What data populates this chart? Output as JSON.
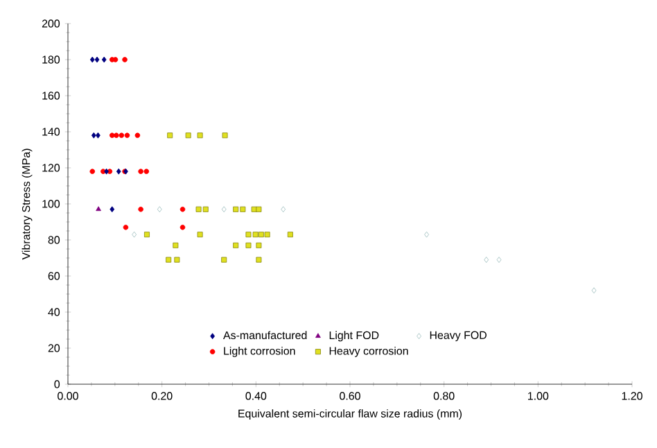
{
  "chart_data": {
    "type": "scatter",
    "xlabel": "Equivalent semi-circular flaw size radius (mm)",
    "ylabel": "Vibratory Stress (MPa)",
    "xlim": [
      0,
      1.2
    ],
    "ylim": [
      0,
      200
    ],
    "xticks": [
      {
        "value": 0,
        "label": "0.00"
      },
      {
        "value": 0.2,
        "label": "0.20"
      },
      {
        "value": 0.4,
        "label": "0.40"
      },
      {
        "value": 0.6,
        "label": "0.60"
      },
      {
        "value": 0.8,
        "label": "0.80"
      },
      {
        "value": 1.0,
        "label": "1.00"
      },
      {
        "value": 1.2,
        "label": "1.20"
      }
    ],
    "yticks": [
      0,
      20,
      40,
      60,
      80,
      100,
      120,
      140,
      160,
      180,
      200
    ],
    "grid": false,
    "legend": "bottom",
    "series": [
      {
        "name": "As-manufactured",
        "color": "#000080",
        "marker": "diamond",
        "x": [
          0.052,
          0.062,
          0.077,
          0.055,
          0.064,
          0.082,
          0.108,
          0.123,
          0.094
        ],
        "values": [
          180,
          180,
          180,
          138,
          138,
          118,
          118,
          118,
          97
        ]
      },
      {
        "name": "Light FOD",
        "color": "#800080",
        "marker": "triangle",
        "x": [
          0.065
        ],
        "values": [
          97
        ]
      },
      {
        "name": "Heavy FOD",
        "color": "#99bbbb",
        "marker": "diamond",
        "x": [
          0.141,
          0.195,
          0.332,
          0.458,
          0.763,
          0.89,
          0.917,
          1.119
        ],
        "values": [
          83,
          97,
          97,
          97,
          83,
          69,
          69,
          52
        ]
      },
      {
        "name": "Light corrosion",
        "color": "#ff0000",
        "marker": "circle",
        "x": [
          0.094,
          0.101,
          0.121,
          0.094,
          0.103,
          0.114,
          0.126,
          0.148,
          0.052,
          0.075,
          0.089,
          0.121,
          0.155,
          0.167,
          0.155,
          0.244,
          0.123,
          0.244
        ],
        "values": [
          180,
          180,
          180,
          138,
          138,
          138,
          138,
          138,
          118,
          118,
          118,
          118,
          118,
          118,
          97,
          97,
          87,
          87
        ]
      },
      {
        "name": "Heavy corrosion",
        "color": "#e0e020",
        "marker": "square",
        "x": [
          0.217,
          0.256,
          0.281,
          0.334,
          0.278,
          0.293,
          0.357,
          0.372,
          0.396,
          0.406,
          0.168,
          0.281,
          0.384,
          0.399,
          0.411,
          0.424,
          0.473,
          0.229,
          0.357,
          0.384,
          0.406,
          0.214,
          0.232,
          0.332,
          0.406
        ],
        "values": [
          138,
          138,
          138,
          138,
          97,
          97,
          97,
          97,
          97,
          97,
          83,
          83,
          83,
          83,
          83,
          83,
          83,
          77,
          77,
          77,
          77,
          69,
          69,
          69,
          69
        ]
      }
    ]
  }
}
